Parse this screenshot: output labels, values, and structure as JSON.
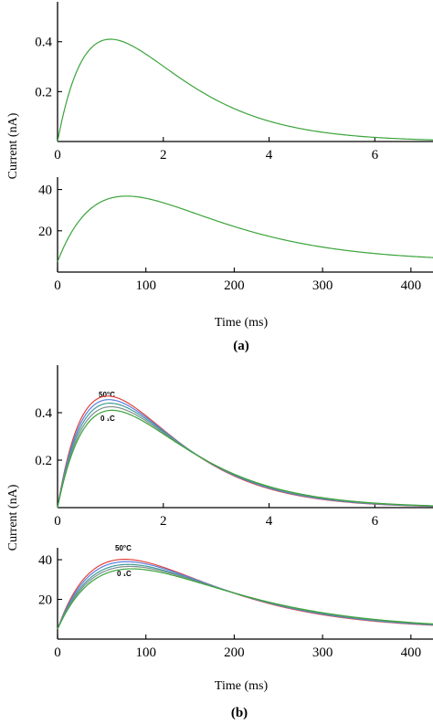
{
  "figure": {
    "ylabel_top": "Current (nA)",
    "ylabel_bottom": "Current (nA)",
    "panel_a_xlabel": "Time (ms)",
    "panel_a_label": "(a)",
    "panel_b_xlabel": "Time (ms)",
    "panel_b_label": "(b)",
    "annot_high_1": "50°C",
    "annot_low_1": "0 ₁C",
    "annot_high_2": "50°C",
    "annot_low_2": "0 ₁C"
  },
  "colors": {
    "green": "#3aa33a",
    "red": "#e0433c",
    "blue": "#5d7de0",
    "teal": "#3f9a98",
    "gray": "#7c8f8c"
  },
  "chart_data": [
    {
      "id": "a1",
      "type": "line",
      "xlim": [
        0,
        7.1
      ],
      "ylim": [
        0,
        0.56
      ],
      "xticks": [
        0,
        2,
        4,
        6
      ],
      "yticks": [
        0.2,
        0.4
      ],
      "xtick_labels": [
        "0",
        "2",
        "4",
        "6"
      ],
      "ytick_labels": [
        "0.2",
        "0.4"
      ],
      "series": [
        {
          "color": "green",
          "peak": 0.41,
          "tpeak": 1.0
        }
      ]
    },
    {
      "id": "a2",
      "type": "line",
      "xlim": [
        0,
        425
      ],
      "ylim": [
        0,
        46
      ],
      "xticks": [
        0,
        100,
        200,
        300,
        400
      ],
      "yticks": [
        20,
        40
      ],
      "xtick_labels": [
        "0",
        "100",
        "200",
        "300",
        "400"
      ],
      "ytick_labels": [
        "20",
        "40"
      ],
      "xlabel": "Time (ms)",
      "series": [
        {
          "color": "green",
          "peak": 36.8,
          "tpeak": 78,
          "baseline": 5
        }
      ]
    },
    {
      "id": "b1",
      "type": "line",
      "xlim": [
        0,
        7.1
      ],
      "ylim": [
        0,
        0.6
      ],
      "xticks": [
        0,
        2,
        4,
        6
      ],
      "yticks": [
        0.2,
        0.4
      ],
      "xtick_labels": [
        "0",
        "2",
        "4",
        "6"
      ],
      "ytick_labels": [
        "0.2",
        "0.4"
      ],
      "series": [
        {
          "color": "red",
          "peak": 0.47,
          "tpeak": 0.95
        },
        {
          "color": "blue",
          "peak": 0.455,
          "tpeak": 0.97
        },
        {
          "color": "teal",
          "peak": 0.44,
          "tpeak": 0.99
        },
        {
          "color": "gray",
          "peak": 0.425,
          "tpeak": 1.01
        },
        {
          "color": "green",
          "peak": 0.41,
          "tpeak": 1.03
        }
      ]
    },
    {
      "id": "b2",
      "type": "line",
      "xlim": [
        0,
        425
      ],
      "ylim": [
        0,
        46
      ],
      "xticks": [
        0,
        100,
        200,
        300,
        400
      ],
      "yticks": [
        20,
        40
      ],
      "xtick_labels": [
        "0",
        "100",
        "200",
        "300",
        "400"
      ],
      "ytick_labels": [
        "20",
        "40"
      ],
      "xlabel": "Time (ms)",
      "series": [
        {
          "color": "red",
          "peak": 40.2,
          "tpeak": 76,
          "baseline": 5
        },
        {
          "color": "blue",
          "peak": 39.0,
          "tpeak": 78,
          "baseline": 5
        },
        {
          "color": "teal",
          "peak": 37.6,
          "tpeak": 80,
          "baseline": 5
        },
        {
          "color": "gray",
          "peak": 36.6,
          "tpeak": 82,
          "baseline": 5
        },
        {
          "color": "green",
          "peak": 35.4,
          "tpeak": 84,
          "baseline": 5
        }
      ]
    }
  ]
}
